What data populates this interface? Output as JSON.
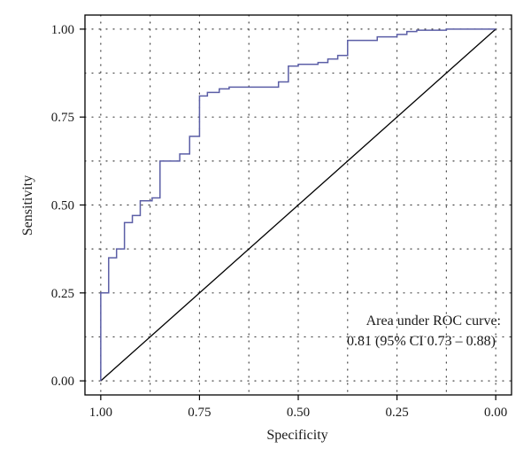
{
  "chart_data": {
    "type": "line",
    "xlabel": "Specificity",
    "ylabel": "Sensitivity",
    "x_reversed": true,
    "xlim": [
      1.04,
      -0.04
    ],
    "ylim": [
      -0.04,
      1.04
    ],
    "x_ticks": [
      1.0,
      0.75,
      0.5,
      0.25,
      0.0
    ],
    "x_tick_labels": [
      "1.00",
      "0.75",
      "0.50",
      "0.25",
      "0.00"
    ],
    "y_ticks": [
      0.0,
      0.25,
      0.5,
      0.75,
      1.0
    ],
    "y_tick_labels": [
      "0.00",
      "0.25",
      "0.50",
      "0.75",
      "1.00"
    ],
    "grid": "dotted",
    "annotation": {
      "line1": "Area under ROC curve:",
      "line2": "0.81 (95% CI 0.73 – 0.88)"
    },
    "colors": {
      "roc": "#5b5ea6",
      "reference": "#000000",
      "grid": "#444444"
    },
    "series": [
      {
        "kind": "step",
        "points": [
          [
            1.0,
            0.0
          ],
          [
            1.0,
            0.25
          ],
          [
            0.98,
            0.25
          ],
          [
            0.98,
            0.35
          ],
          [
            0.96,
            0.35
          ],
          [
            0.96,
            0.375
          ],
          [
            0.94,
            0.375
          ],
          [
            0.94,
            0.45
          ],
          [
            0.92,
            0.45
          ],
          [
            0.92,
            0.47
          ],
          [
            0.9,
            0.47
          ],
          [
            0.9,
            0.512
          ],
          [
            0.87,
            0.512
          ],
          [
            0.87,
            0.52
          ],
          [
            0.85,
            0.52
          ],
          [
            0.85,
            0.625
          ],
          [
            0.8,
            0.625
          ],
          [
            0.8,
            0.645
          ],
          [
            0.775,
            0.645
          ],
          [
            0.775,
            0.695
          ],
          [
            0.75,
            0.695
          ],
          [
            0.75,
            0.81
          ],
          [
            0.73,
            0.81
          ],
          [
            0.73,
            0.82
          ],
          [
            0.7,
            0.82
          ],
          [
            0.7,
            0.83
          ],
          [
            0.675,
            0.83
          ],
          [
            0.675,
            0.835
          ],
          [
            0.55,
            0.835
          ],
          [
            0.55,
            0.85
          ],
          [
            0.525,
            0.85
          ],
          [
            0.525,
            0.895
          ],
          [
            0.5,
            0.895
          ],
          [
            0.5,
            0.9
          ],
          [
            0.45,
            0.9
          ],
          [
            0.45,
            0.905
          ],
          [
            0.425,
            0.905
          ],
          [
            0.425,
            0.915
          ],
          [
            0.4,
            0.915
          ],
          [
            0.4,
            0.925
          ],
          [
            0.375,
            0.925
          ],
          [
            0.375,
            0.968
          ],
          [
            0.3,
            0.968
          ],
          [
            0.3,
            0.978
          ],
          [
            0.25,
            0.978
          ],
          [
            0.25,
            0.985
          ],
          [
            0.225,
            0.985
          ],
          [
            0.225,
            0.993
          ],
          [
            0.2,
            0.993
          ],
          [
            0.2,
            0.997
          ],
          [
            0.125,
            0.997
          ],
          [
            0.125,
            1.0
          ],
          [
            0.0,
            1.0
          ]
        ]
      },
      {
        "kind": "reference",
        "points": [
          [
            1.0,
            0.0
          ],
          [
            0.0,
            1.0
          ]
        ]
      }
    ]
  }
}
